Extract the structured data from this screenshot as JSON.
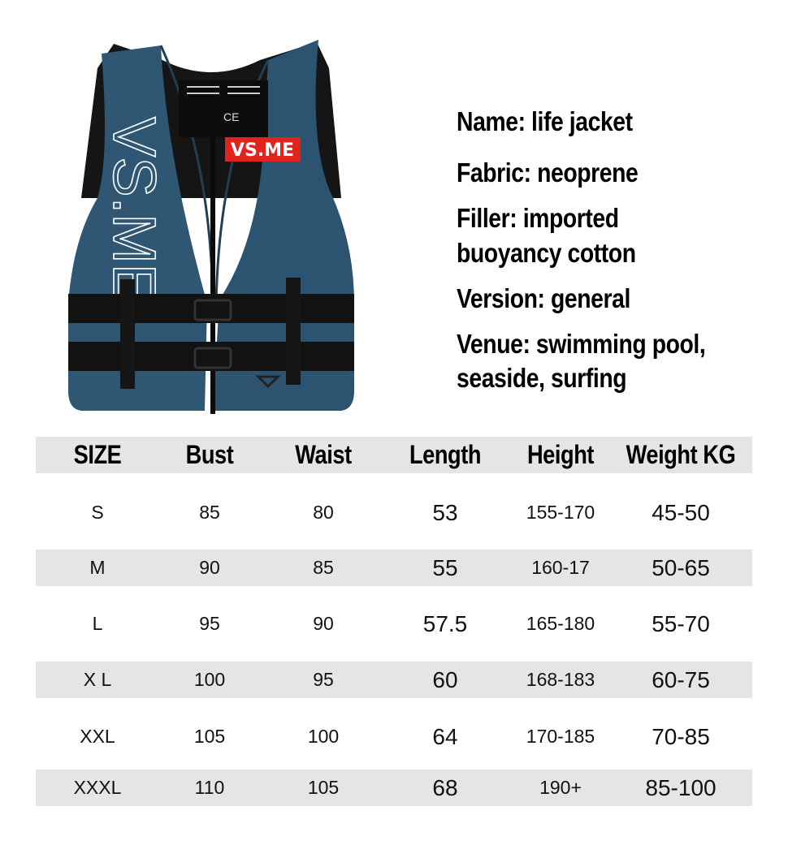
{
  "product": {
    "logo_text": "VS.ME",
    "colors": {
      "vest": "#2e5470",
      "strap": "#111111",
      "logo_bg": "#e0231c",
      "row_shade": "#e5e5e5"
    }
  },
  "specs": {
    "name": "Name: life jacket",
    "fabric": "Fabric: neoprene",
    "filler_1": "Filler: imported",
    "filler_2": "buoyancy cotton",
    "version": "Version: general",
    "venue_1": "Venue: swimming pool,",
    "venue_2": "seaside, surfing"
  },
  "size_table": {
    "headers": [
      "SIZE",
      "Bust",
      "Waist",
      "Length",
      "Height",
      "Weight KG"
    ],
    "rows": [
      [
        "S",
        "85",
        "80",
        "53",
        "155-170",
        "45-50"
      ],
      [
        "M",
        "90",
        "85",
        "55",
        "160-17",
        "50-65"
      ],
      [
        "L",
        "95",
        "90",
        "57.5",
        "165-180",
        "55-70"
      ],
      [
        "X L",
        "100",
        "95",
        "60",
        "168-183",
        "60-75"
      ],
      [
        "XXL",
        "105",
        "100",
        "64",
        "170-185",
        "70-85"
      ],
      [
        "XXXL",
        "110",
        "105",
        "68",
        "190+",
        "85-100"
      ]
    ]
  }
}
